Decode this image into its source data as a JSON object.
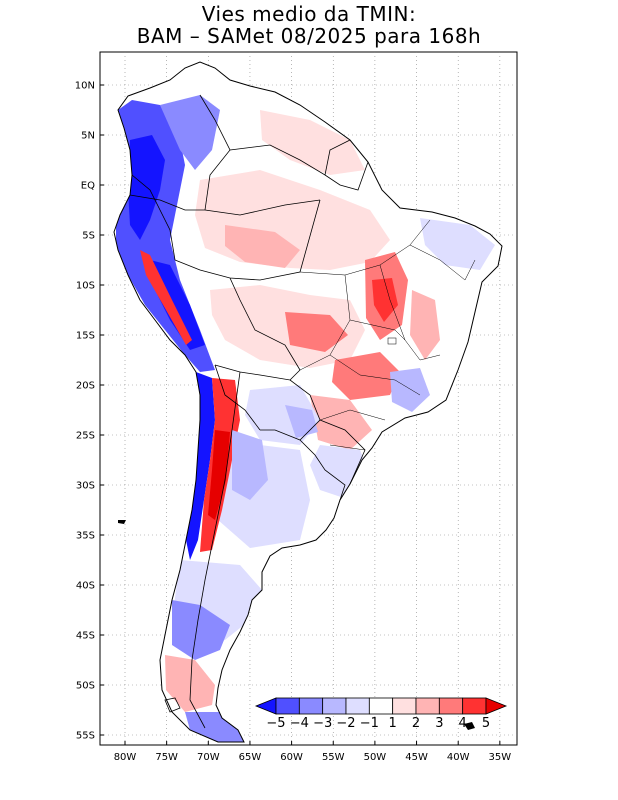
{
  "title": {
    "line1": "Vies medio da TMIN:",
    "line2": "BAM – SAMet 08/2025  para 168h"
  },
  "axes": {
    "lon_labels": [
      "80W",
      "75W",
      "70W",
      "65W",
      "60W",
      "55W",
      "50W",
      "45W",
      "40W",
      "35W"
    ],
    "lat_labels": [
      "10N",
      "5N",
      "EQ",
      "5S",
      "10S",
      "15S",
      "20S",
      "25S",
      "30S",
      "35S",
      "40S",
      "45S",
      "50S",
      "55S"
    ]
  },
  "colorbar": {
    "labels": [
      "−5",
      "−4",
      "−3",
      "−2",
      "−1",
      "1",
      "2",
      "3",
      "4",
      "5"
    ],
    "colors": [
      "#1414ff",
      "#5050ff",
      "#8a8aff",
      "#b8b8ff",
      "#dedeff",
      "#ffffff",
      "#ffe0e0",
      "#ffb4b4",
      "#ff7a7a",
      "#ff3232",
      "#e60000"
    ]
  },
  "colors": {
    "land": "#ffffff",
    "border": "#000000",
    "grid": "#888888"
  }
}
